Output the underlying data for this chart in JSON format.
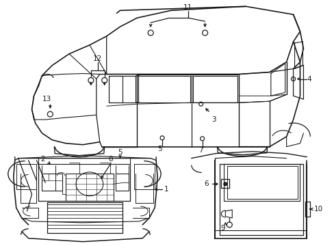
{
  "background_color": "#ffffff",
  "line_color": "#1a1a1a",
  "label_fontsize": 7.5,
  "fig_width": 4.89,
  "fig_height": 3.6,
  "dpi": 100
}
